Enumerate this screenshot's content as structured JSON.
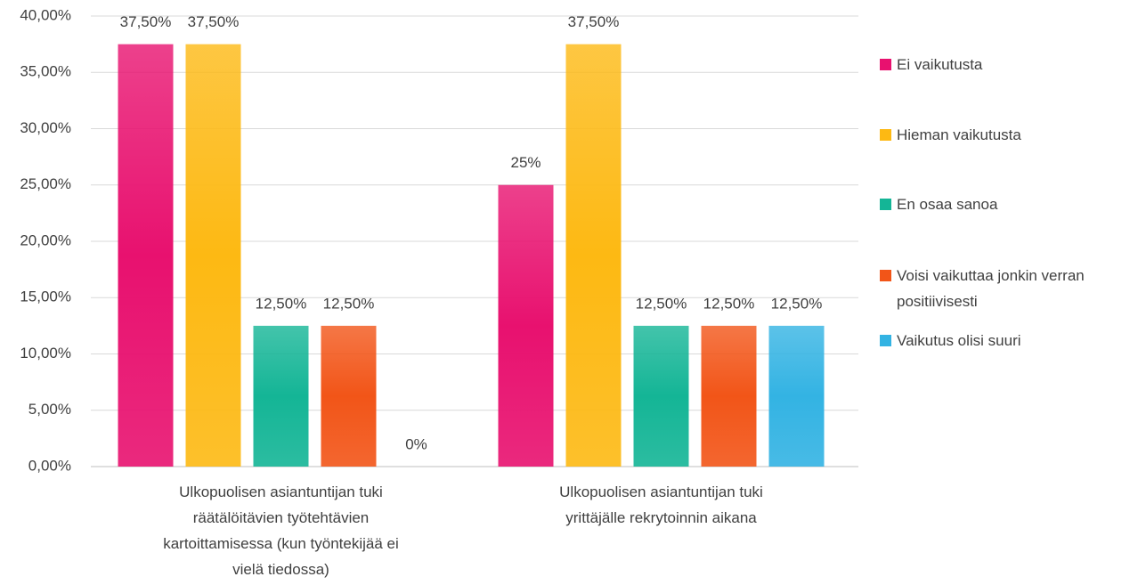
{
  "chart_data": {
    "type": "bar",
    "categories": [
      "Ulkopuolisen asiantuntijan tuki räätälöitävien työtehtävien kartoittamisessa (kun työntekijää ei vielä tiedossa)",
      "Ulkopuolisen asiantuntijan tuki yrittäjälle rekrytoinnin aikana"
    ],
    "series": [
      {
        "name": "Ei vaikutusta",
        "color": "#e8116f",
        "values": [
          37.5,
          25
        ],
        "value_labels": [
          "37,50%",
          "25%"
        ]
      },
      {
        "name": "Hieman vaikutusta",
        "color": "#fdb913",
        "values": [
          37.5,
          37.5
        ],
        "value_labels": [
          "37,50%",
          "37,50%"
        ]
      },
      {
        "name": "En osaa sanoa",
        "color": "#14b596",
        "values": [
          12.5,
          12.5
        ],
        "value_labels": [
          "12,50%",
          "12,50%"
        ]
      },
      {
        "name": "Voisi vaikuttaa jonkin verran positiivisesti",
        "color": "#f25518",
        "values": [
          12.5,
          12.5
        ],
        "value_labels": [
          "12,50%",
          "12,50%"
        ]
      },
      {
        "name": "Vaikutus olisi suuri",
        "color": "#33b3e3",
        "values": [
          0,
          12.5
        ],
        "value_labels": [
          "0%",
          "12,50%"
        ]
      }
    ],
    "ylim": [
      0,
      40
    ],
    "yticks": [
      {
        "value": 0,
        "label": "0,00%"
      },
      {
        "value": 5,
        "label": "5,00%"
      },
      {
        "value": 10,
        "label": "10,00%"
      },
      {
        "value": 15,
        "label": "15,00%"
      },
      {
        "value": 20,
        "label": "20,00%"
      },
      {
        "value": 25,
        "label": "25,00%"
      },
      {
        "value": 30,
        "label": "30,00%"
      },
      {
        "value": 35,
        "label": "35,00%"
      },
      {
        "value": 40,
        "label": "40,00%"
      }
    ],
    "grid": true,
    "legend": "right"
  }
}
